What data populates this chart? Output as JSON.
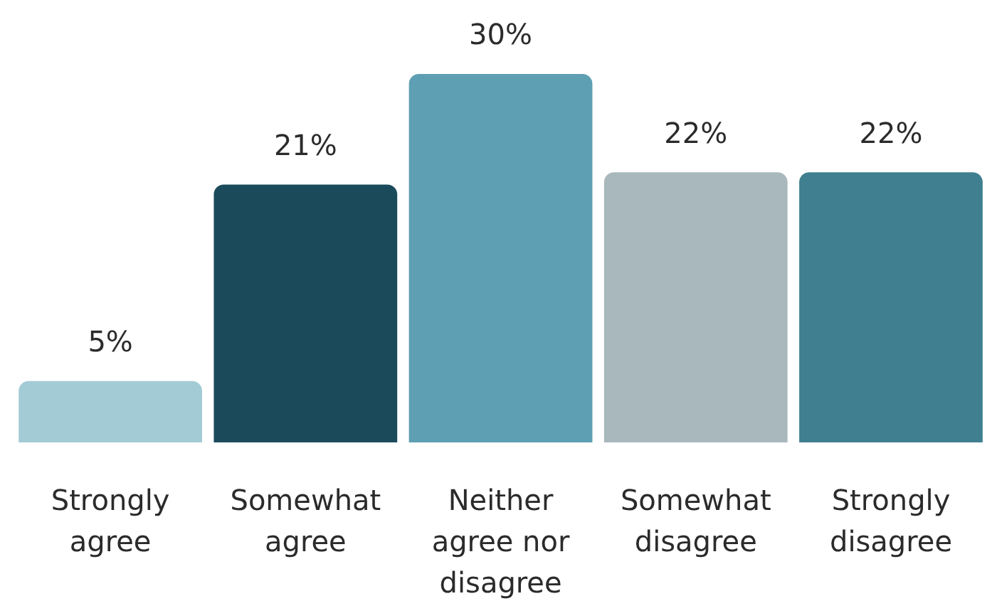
{
  "chart_data": {
    "type": "bar",
    "categories": [
      "Strongly agree",
      "Somewhat agree",
      "Neither agree nor disagree",
      "Somewhat disagree",
      "Strongly disagree"
    ],
    "values": [
      5,
      21,
      30,
      22,
      22
    ],
    "colors": [
      "#a3cbd5",
      "#1b4b5b",
      "#5e9fb3",
      "#a8b8bd",
      "#3f7f8f"
    ],
    "value_labels": [
      "5%",
      "21%",
      "30%",
      "22%",
      "22%"
    ],
    "tick_labels": "x",
    "grid": false,
    "legend": false
  }
}
